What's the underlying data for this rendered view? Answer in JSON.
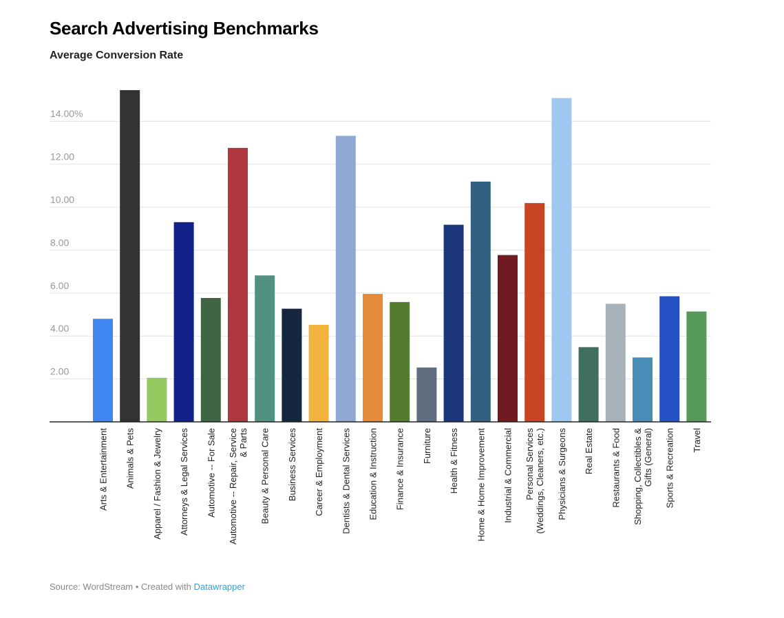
{
  "chart_data": {
    "type": "bar",
    "title": "Search Advertising Benchmarks",
    "subtitle": "Average Conversion Rate",
    "xlabel": "",
    "ylabel": "",
    "ylim": [
      0,
      15.5
    ],
    "yticks": [
      2,
      4,
      6,
      8,
      10,
      12,
      14
    ],
    "ytick_labels": [
      "2.00",
      "4.00",
      "6.00",
      "8.00",
      "10.00",
      "12.00",
      "14.00%"
    ],
    "grid": true,
    "categories": [
      "Arts & Entertainment",
      "Animals & Pets",
      "Apparel / Fashion & Jewelry",
      "Attorneys & Legal Services",
      "Automotive -- For Sale",
      "Automotive -- Repair, Service & Parts",
      "Beauty & Personal Care",
      "Business Services",
      "Career & Employment",
      "Dentists & Dental Services",
      "Education & Instruction",
      "Finance & Insurance",
      "Furniture",
      "Health & Fitness",
      "Home & Home Improvement",
      "Industrial & Commercial",
      "Personal Services (Weddings, Cleaners, etc.)",
      "Physicians & Surgeons",
      "Real Estate",
      "Restaurants & Food",
      "Shopping, Collectibles & Gifts (General)",
      "Sports & Recreation",
      "Travel"
    ],
    "category_lines": [
      [
        "Arts & Entertainment"
      ],
      [
        "Animals & Pets"
      ],
      [
        "Apparel / Fashion & Jewelry"
      ],
      [
        "Attorneys & Legal Services"
      ],
      [
        "Automotive -- For Sale"
      ],
      [
        "Automotive -- Repair, Service",
        "& Parts"
      ],
      [
        "Beauty & Personal Care"
      ],
      [
        "Business Services"
      ],
      [
        "Career & Employment"
      ],
      [
        "Dentists & Dental Services"
      ],
      [
        "Education & Instruction"
      ],
      [
        "Finance & Insurance"
      ],
      [
        "Furniture"
      ],
      [
        "Health & Fitness"
      ],
      [
        "Home & Home Improvement"
      ],
      [
        "Industrial & Commercial"
      ],
      [
        "Personal Services",
        "(Weddings, Cleaners, etc.)"
      ],
      [
        "Physicians & Surgeons"
      ],
      [
        "Real Estate"
      ],
      [
        "Restaurants & Food"
      ],
      [
        "Shopping, Collectibles &",
        "Gifts (General)"
      ],
      [
        "Sports & Recreation"
      ],
      [
        "Travel"
      ]
    ],
    "values": [
      4.8,
      15.45,
      2.05,
      9.3,
      5.77,
      12.76,
      6.82,
      5.27,
      4.52,
      13.32,
      5.96,
      5.58,
      2.53,
      9.18,
      11.19,
      7.77,
      10.19,
      15.08,
      3.48,
      5.5,
      3.0,
      5.85,
      5.14
    ],
    "colors": [
      "#3f86f0",
      "#313433",
      "#93c95f",
      "#122089",
      "#3e6443",
      "#b03640",
      "#51917f",
      "#15263f",
      "#f2b43c",
      "#91a8d4",
      "#e5893a",
      "#537c2f",
      "#5e6e7f",
      "#1c357c",
      "#326080",
      "#701b22",
      "#c94423",
      "#9dc8f0",
      "#406f62",
      "#a8b2bb",
      "#4a8cb8",
      "#2450c4",
      "#559a5b"
    ]
  },
  "source": {
    "prefix": "Source: WordStream • Created with ",
    "link": "Datawrapper"
  }
}
